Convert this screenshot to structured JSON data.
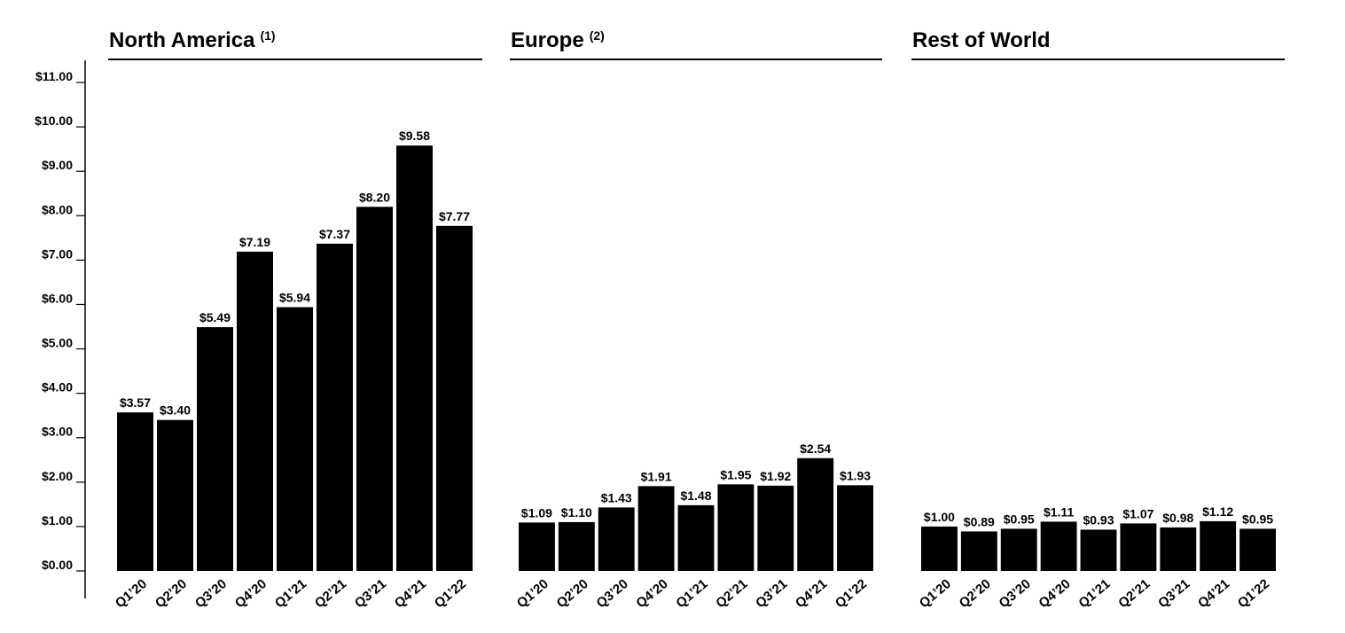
{
  "chart_data": [
    {
      "type": "bar",
      "title": "North America",
      "title_note": "(1)",
      "categories": [
        "Q1’20",
        "Q2’20",
        "Q3’20",
        "Q4’20",
        "Q1’21",
        "Q2’21",
        "Q3’21",
        "Q4’21",
        "Q1’22"
      ],
      "values": [
        3.57,
        3.4,
        5.49,
        7.19,
        5.94,
        7.37,
        8.2,
        9.58,
        7.77
      ],
      "value_labels": [
        "$3.57",
        "$3.40",
        "$5.49",
        "$7.19",
        "$5.94",
        "$7.37",
        "$8.20",
        "$9.58",
        "$7.77"
      ],
      "color": "#000000",
      "ylim": [
        0,
        11.5
      ],
      "yticks": [
        {
          "value": 0,
          "label": "$0.00"
        },
        {
          "value": 1,
          "label": "$1.00"
        },
        {
          "value": 2,
          "label": "$2.00"
        },
        {
          "value": 3,
          "label": "$3.00"
        },
        {
          "value": 4,
          "label": "$4.00"
        },
        {
          "value": 5,
          "label": "$5.00"
        },
        {
          "value": 6,
          "label": "$6.00"
        },
        {
          "value": 7,
          "label": "$7.00"
        },
        {
          "value": 8,
          "label": "$8.00"
        },
        {
          "value": 9,
          "label": "$9.00"
        },
        {
          "value": 10,
          "label": "$10.00"
        },
        {
          "value": 11,
          "label": "$11.00"
        }
      ]
    },
    {
      "type": "bar",
      "title": "Europe",
      "title_note": "(2)",
      "categories": [
        "Q1’20",
        "Q2’20",
        "Q3’20",
        "Q4’20",
        "Q1’21",
        "Q2’21",
        "Q3’21",
        "Q4’21",
        "Q1’22"
      ],
      "values": [
        1.09,
        1.1,
        1.43,
        1.91,
        1.48,
        1.95,
        1.92,
        2.54,
        1.93
      ],
      "value_labels": [
        "$1.09",
        "$1.10",
        "$1.43",
        "$1.91",
        "$1.48",
        "$1.95",
        "$1.92",
        "$2.54",
        "$1.93"
      ],
      "color": "#000000",
      "ylim": [
        0,
        11.5
      ]
    },
    {
      "type": "bar",
      "title": "Rest of World",
      "categories": [
        "Q1’20",
        "Q2’20",
        "Q3’20",
        "Q4’20",
        "Q1’21",
        "Q2’21",
        "Q3’21",
        "Q4’21",
        "Q1’22"
      ],
      "values": [
        1.0,
        0.89,
        0.95,
        1.11,
        0.93,
        1.07,
        0.98,
        1.12,
        0.95
      ],
      "value_labels": [
        "$1.00",
        "$0.89",
        "$0.95",
        "$1.11",
        "$0.93",
        "$1.07",
        "$0.98",
        "$1.12",
        "$0.95"
      ],
      "color": "#000000",
      "ylim": [
        0,
        11.5
      ]
    }
  ]
}
